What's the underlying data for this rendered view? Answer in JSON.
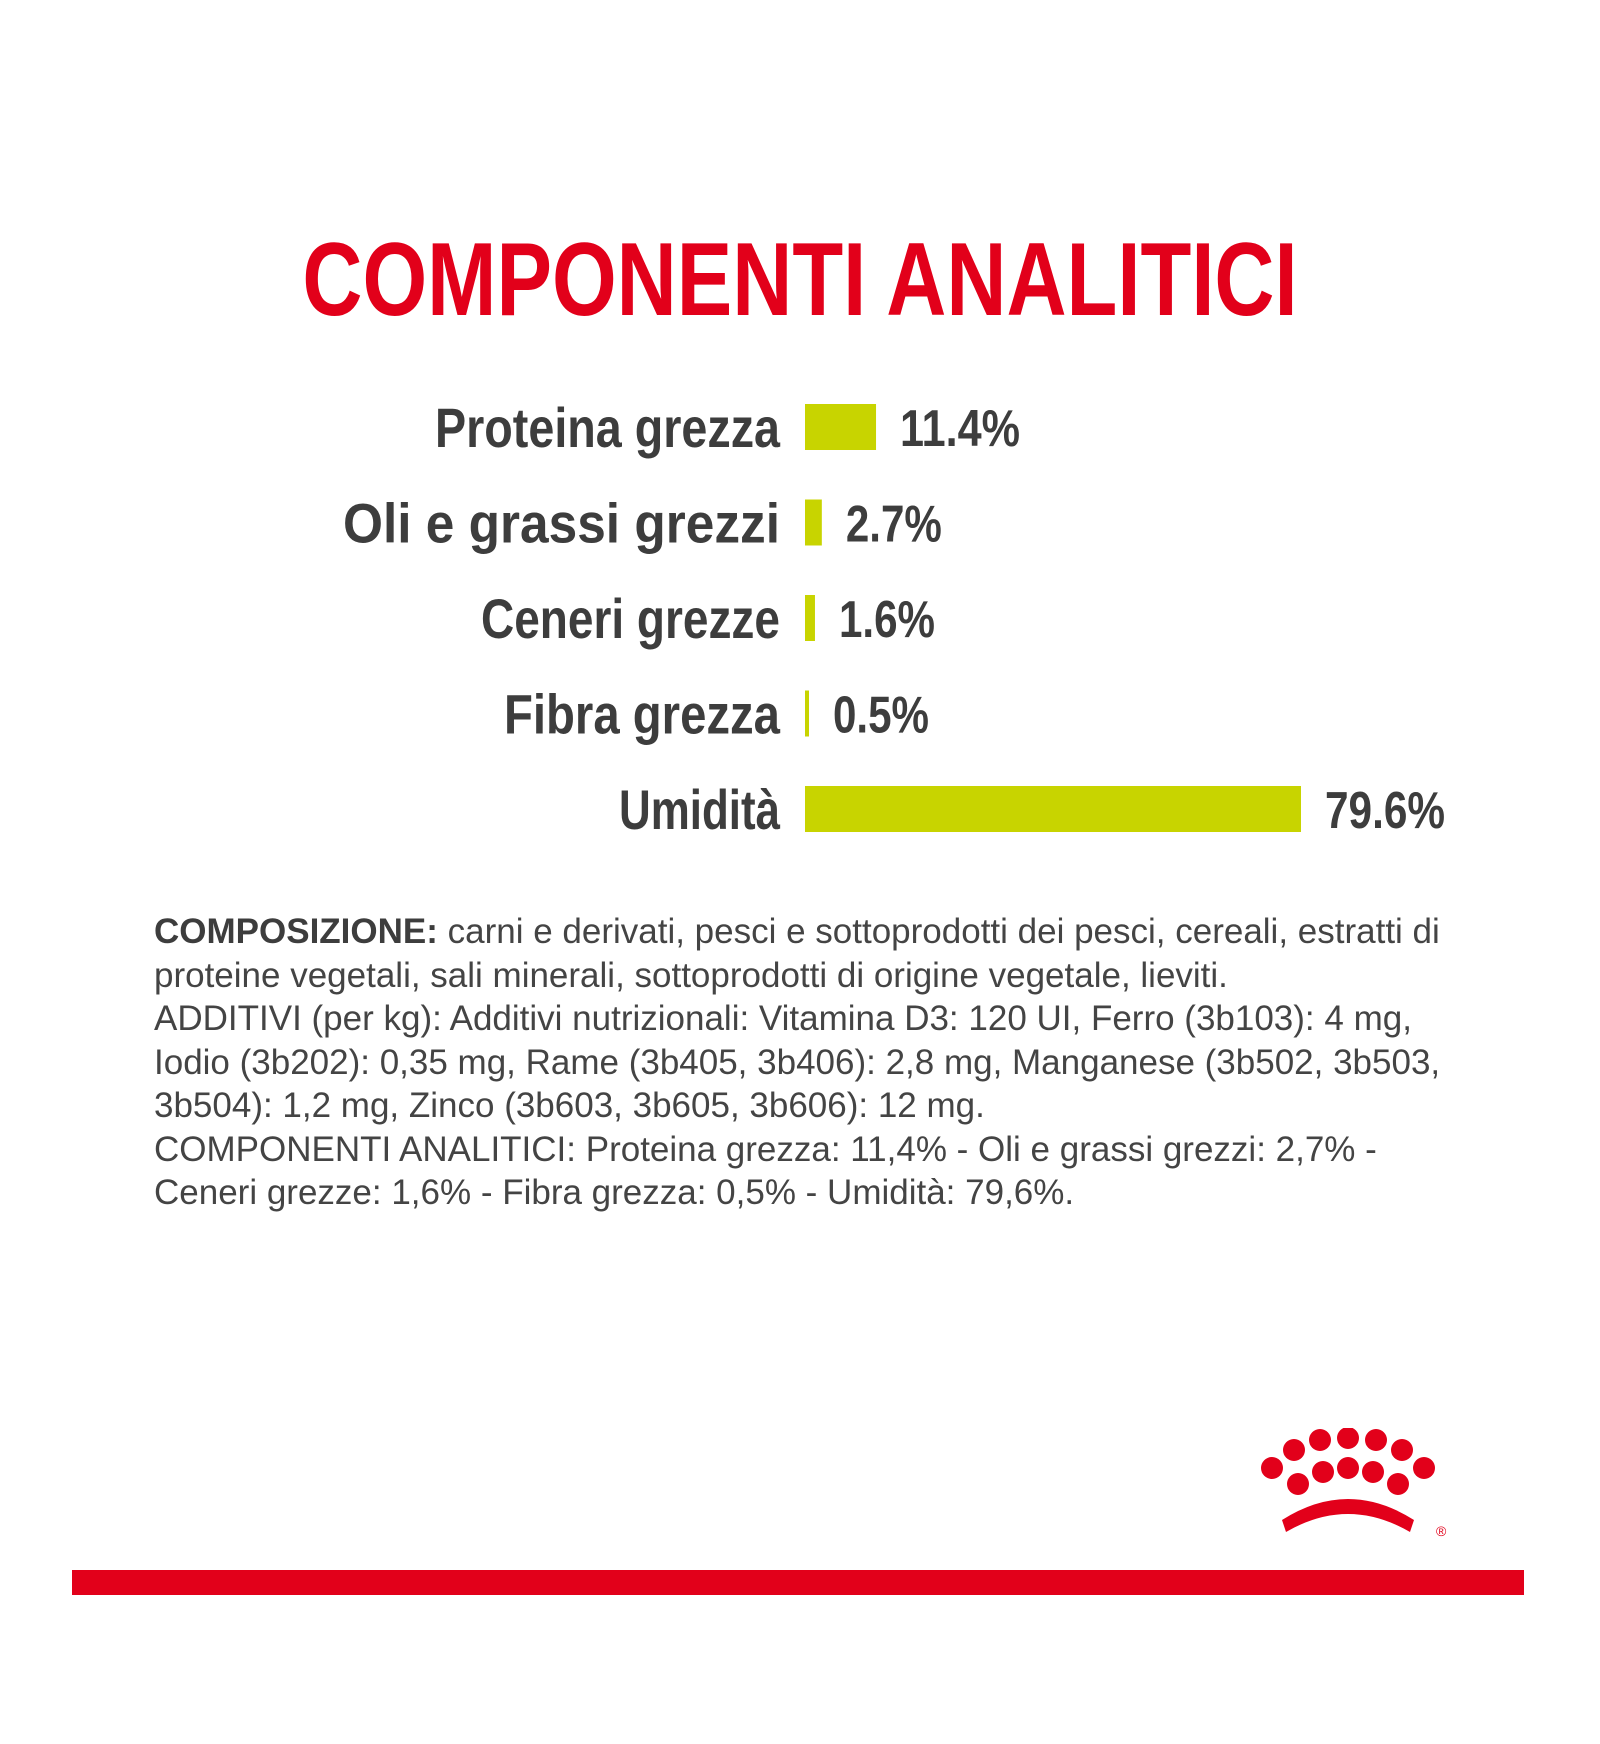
{
  "title": "COMPONENTI ANALITICI",
  "colors": {
    "accent": "#e2001a",
    "bar": "#c8d400",
    "text": "#3d3d3d"
  },
  "chart_data": {
    "type": "bar",
    "orientation": "horizontal",
    "categories": [
      "Proteina grezza",
      "Oli e grassi grezzi",
      "Ceneri grezze",
      "Fibra grezza",
      "Umidità"
    ],
    "values": [
      11.4,
      2.7,
      1.6,
      0.5,
      79.6
    ],
    "value_labels": [
      "11.4%",
      "2.7%",
      "1.6%",
      "0.5%",
      "79.6%"
    ],
    "grid": false
  },
  "composition": {
    "lead": "COMPOSIZIONE:",
    "ingredients": " carni e derivati, pesci e sottoprodotti dei pesci, cereali, estratti di proteine vegetali, sali minerali, sottoprodotti di origine vegetale, lieviti.",
    "additives": "ADDITIVI (per kg): Additivi nutrizionali: Vitamina D3: 120 UI, Ferro (3b103): 4 mg, Iodio (3b202): 0,35 mg, Rame (3b405, 3b406): 2,8 mg, Manganese (3b502, 3b503, 3b504): 1,2 mg, Zinco (3b603, 3b605, 3b606): 12 mg.",
    "analytical": "COMPONENTI ANALITICI: Proteina grezza: 11,4% - Oli e grassi grezzi: 2,7% - Ceneri grezze: 1,6% - Fibra grezza: 0,5% - Umidità: 79,6%."
  },
  "logo": {
    "icon": "royal-canin-crown-logo",
    "mark": "®"
  }
}
